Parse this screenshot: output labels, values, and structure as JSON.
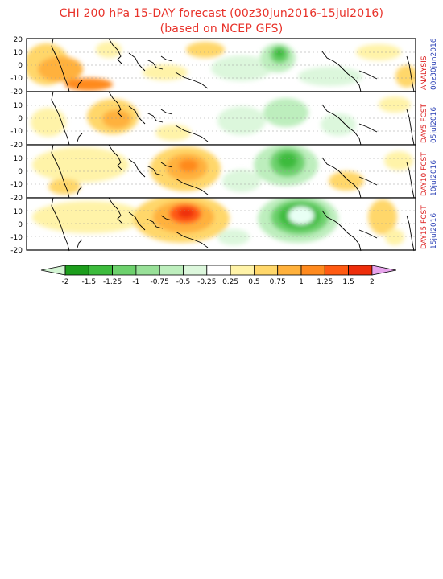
{
  "title_line1": "CHI 200 hPa 15-DAY forecast (00z30jun2016-15jul2016)",
  "title_line2": "(based on NCEP GFS)",
  "lat_ticks": [
    "20",
    "10",
    "0",
    "-10",
    "-20"
  ],
  "panels": [
    {
      "label_red": "ANALYSIS",
      "label_blue": "00z30jun2016"
    },
    {
      "label_red": "DAY5 FCST",
      "label_blue": "05jul2016"
    },
    {
      "label_red": "DAY10 FCST",
      "label_blue": "10jul2016"
    },
    {
      "label_red": "DAY15 FCST",
      "label_blue": "15jul2016"
    }
  ],
  "colorbar": {
    "labels": [
      "-2",
      "-1.5",
      "-1.25",
      "-1",
      "-0.75",
      "-0.5",
      "-0.25",
      "0.25",
      "0.5",
      "0.75",
      "1",
      "1.25",
      "1.5",
      "2"
    ],
    "colors": [
      "#1d9e1d",
      "#3dbb3d",
      "#6dd16d",
      "#98e098",
      "#bdeebd",
      "#dcf7dc",
      "#ffffff",
      "#fff3a8",
      "#ffd76a",
      "#ffb13c",
      "#ff8a1e",
      "#ff5a12",
      "#ee2d0a"
    ],
    "low_arrow_color": "#d4f5d4",
    "high_arrow_color": "#e7a4ec"
  }
}
